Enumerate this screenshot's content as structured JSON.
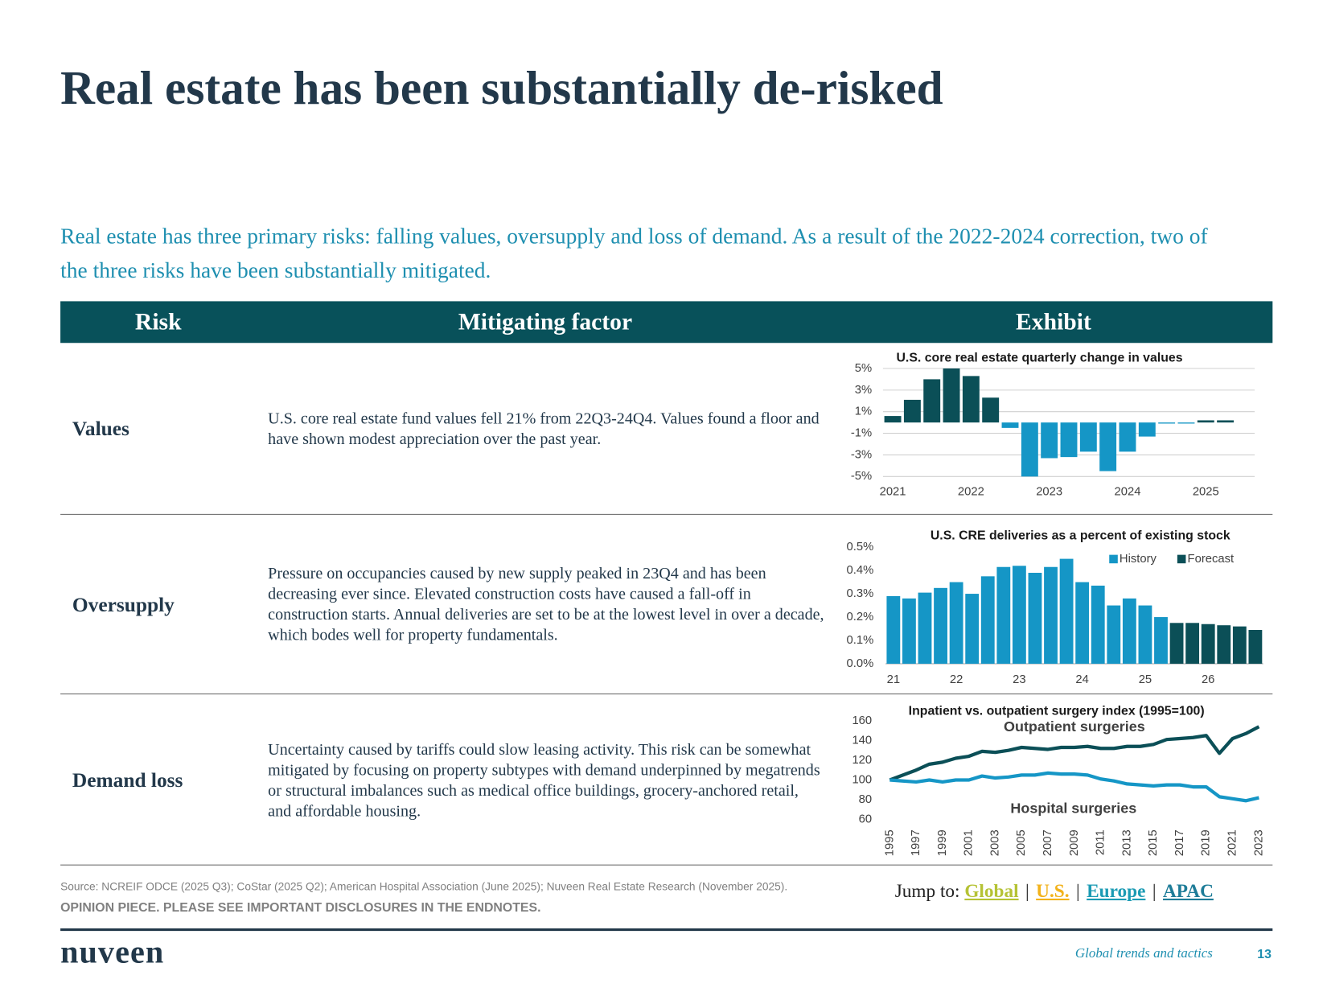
{
  "header": {
    "title": "Real estate has been substantially de-risked",
    "subtitle": "Real estate has three primary risks: falling values, oversupply and loss of demand. As a result of the 2022-2024 correction, two of the three risks have been substantially mitigated."
  },
  "table": {
    "columns": [
      "Risk",
      "Mitigating factor",
      "Exhibit"
    ],
    "rows": [
      [
        "Values",
        "U.S. core real estate fund values fell 21% from 22Q3-24Q4. Values found a floor and have shown modest appreciation over the past year."
      ],
      [
        "Oversupply",
        "Pressure on occupancies caused by new supply peaked in 23Q4 and has been decreasing ever since. Elevated construction costs have caused a fall-off in construction starts. Annual deliveries are set to be at the lowest level in over a decade, which bodes well for property fundamentals."
      ],
      [
        "Demand loss",
        "Uncertainty caused by tariffs could slow leasing activity. This risk can be somewhat mitigated by focusing on property subtypes with demand underpinned by megatrends or structural imbalances such as medical office buildings, grocery-anchored retail, and affordable housing."
      ]
    ]
  },
  "chart_data": [
    {
      "type": "bar",
      "title": "U.S. core real estate quarterly change in values",
      "categories": [
        "2021",
        null,
        null,
        null,
        "2022",
        null,
        null,
        null,
        "2023",
        null,
        null,
        null,
        "2024",
        null,
        null,
        null,
        "2025",
        null
      ],
      "values": [
        0.6,
        2.1,
        4.0,
        5.0,
        4.3,
        2.3,
        -0.5,
        -5.0,
        -3.3,
        -3.2,
        -2.7,
        -4.5,
        -2.7,
        -1.3,
        -0.1,
        -0.1,
        0.2,
        0.2
      ],
      "color": "#0b4f57",
      "negative_color": "#1596c6",
      "ylim": [
        -5,
        5
      ],
      "yticks": [
        {
          "value": 5,
          "label": "5%"
        },
        {
          "value": 3,
          "label": "3%"
        },
        {
          "value": 1,
          "label": "1%"
        },
        {
          "value": -1,
          "label": "-1%"
        },
        {
          "value": -3,
          "label": "-3%"
        },
        {
          "value": -5,
          "label": "-5%"
        }
      ],
      "grid": true
    },
    {
      "type": "bar",
      "title": "U.S. CRE deliveries as a percent of existing stock",
      "categories": [
        "21",
        null,
        null,
        null,
        "22",
        null,
        null,
        null,
        "23",
        null,
        null,
        null,
        "24",
        null,
        null,
        null,
        "25",
        null,
        null,
        null,
        "26",
        null,
        null,
        null
      ],
      "series": [
        {
          "name": "History",
          "color": "#1596c6",
          "values": [
            0.29,
            0.28,
            0.305,
            0.325,
            0.35,
            0.3,
            0.375,
            0.415,
            0.42,
            0.39,
            0.415,
            0.45,
            0.35,
            0.335,
            0.25,
            0.28,
            0.25,
            0.2,
            null,
            null,
            null,
            null,
            null,
            null
          ]
        },
        {
          "name": "Forecast",
          "color": "#0b4f57",
          "values": [
            null,
            null,
            null,
            null,
            null,
            null,
            null,
            null,
            null,
            null,
            null,
            null,
            null,
            null,
            null,
            null,
            null,
            null,
            0.175,
            0.175,
            0.17,
            0.165,
            0.16,
            0.145
          ]
        }
      ],
      "ylim": [
        0,
        0.5
      ],
      "yticks": [
        {
          "value": 0.5,
          "label": "0.5%"
        },
        {
          "value": 0.4,
          "label": "0.4%"
        },
        {
          "value": 0.3,
          "label": "0.3%"
        },
        {
          "value": 0.2,
          "label": "0.2%"
        },
        {
          "value": 0.1,
          "label": "0.1%"
        },
        {
          "value": 0,
          "label": "0.0%"
        }
      ],
      "grid": false,
      "legend": "top-right"
    },
    {
      "type": "line",
      "title": "Inpatient vs. outpatient surgery index (1995=100)",
      "x": [
        1995,
        1996,
        1997,
        1998,
        1999,
        2000,
        2001,
        2002,
        2003,
        2004,
        2005,
        2006,
        2007,
        2008,
        2009,
        2010,
        2011,
        2012,
        2013,
        2014,
        2015,
        2016,
        2017,
        2018,
        2019,
        2020,
        2021,
        2022,
        2023
      ],
      "series": [
        {
          "name": "Outpatient surgeries",
          "color": "#0b4f57",
          "values": [
            100,
            105,
            110,
            116,
            118,
            122,
            124,
            129,
            128,
            130,
            133,
            132,
            131,
            133,
            133,
            134,
            132,
            132,
            134,
            134,
            136,
            141,
            142,
            143,
            145,
            127,
            142,
            147,
            154
          ]
        },
        {
          "name": "Hospital surgeries",
          "color": "#1596c6",
          "values": [
            100,
            99,
            98,
            100,
            98,
            100,
            100,
            104,
            102,
            103,
            105,
            105,
            107,
            106,
            106,
            105,
            101,
            99,
            96,
            95,
            94,
            95,
            95,
            93,
            93,
            83,
            81,
            79,
            82
          ]
        }
      ],
      "xlim": [
        1995,
        2023
      ],
      "xticks": [
        1995,
        1997,
        1999,
        2001,
        2003,
        2005,
        2007,
        2009,
        2011,
        2013,
        2015,
        2017,
        2019,
        2021,
        2023
      ],
      "ylim": [
        60,
        160
      ],
      "yticks": [
        60,
        80,
        100,
        120,
        140,
        160
      ],
      "grid": false
    }
  ],
  "footer": {
    "source": "Source: NCREIF ODCE (2025 Q3); CoStar (2025 Q2); American Hospital Association (June 2025); Nuveen Real Estate Research (November 2025).",
    "disclaimer": "OPINION PIECE. PLEASE SEE IMPORTANT DISCLOSURES IN THE ENDNOTES.",
    "jump_label": "Jump to:",
    "links": [
      "Global",
      "U.S.",
      "Europe",
      "APAC"
    ],
    "separator": "|",
    "brand": "nuveen",
    "publication": "Global trends and tactics",
    "page": "13"
  }
}
